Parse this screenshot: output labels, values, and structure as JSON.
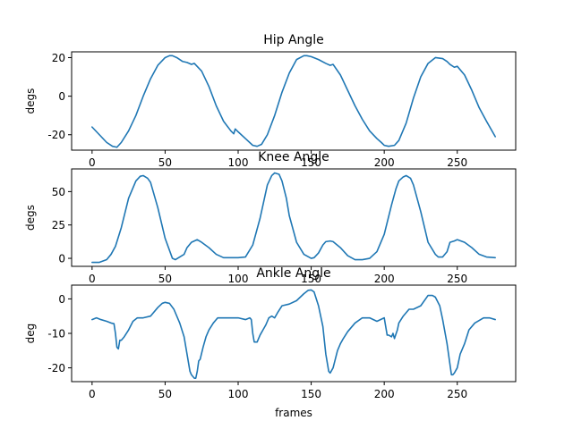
{
  "chart_data": [
    {
      "type": "line",
      "title": "Hip Angle",
      "xlabel": "",
      "ylabel": "degs",
      "xlim": [
        -14,
        290
      ],
      "ylim": [
        -28,
        23
      ],
      "xticks": [
        0,
        50,
        100,
        150,
        200,
        250
      ],
      "yticks": [
        -20,
        0,
        20
      ],
      "color": "#1f77b4",
      "series": [
        {
          "x": [
            0,
            5,
            10,
            14,
            17,
            20,
            25,
            30,
            35,
            40,
            45,
            50,
            53,
            55,
            58,
            62,
            65,
            68,
            70,
            75,
            80,
            85,
            90,
            95,
            97,
            98,
            100,
            105,
            110,
            113,
            116,
            120,
            125,
            130,
            135,
            140,
            145,
            147,
            150,
            155,
            160,
            163,
            165,
            170,
            175,
            180,
            185,
            190,
            195,
            198,
            200,
            203,
            207,
            210,
            215,
            220,
            225,
            230,
            235,
            240,
            243,
            245,
            248,
            250,
            255,
            260,
            265,
            270,
            276
          ],
          "y": [
            -16,
            -20,
            -24,
            -26,
            -26.5,
            -24,
            -18,
            -10,
            0,
            9,
            16,
            20,
            21,
            21,
            20,
            18,
            17.5,
            16.5,
            17,
            13,
            5,
            -5,
            -13,
            -18,
            -19.5,
            -17,
            -18.5,
            -22,
            -25.5,
            -26,
            -25,
            -20,
            -10,
            2,
            12,
            19,
            21,
            21,
            20.5,
            19,
            17,
            16,
            16.5,
            11,
            3,
            -5,
            -12,
            -18,
            -22,
            -24,
            -25.5,
            -26,
            -25.5,
            -23,
            -14,
            -1,
            10,
            17,
            20,
            19.5,
            18,
            16.5,
            15,
            15.5,
            11,
            3,
            -6,
            -13,
            -21
          ]
        }
      ]
    },
    {
      "type": "line",
      "title": "Knee Angle",
      "xlabel": "",
      "ylabel": "degs",
      "xlim": [
        -14,
        290
      ],
      "ylim": [
        -6,
        67
      ],
      "xticks": [
        0,
        50,
        100,
        150,
        200,
        250
      ],
      "yticks": [
        0,
        25,
        50
      ],
      "color": "#1f77b4",
      "series": [
        {
          "x": [
            0,
            5,
            10,
            13,
            16,
            20,
            25,
            30,
            33,
            35,
            38,
            40,
            45,
            50,
            55,
            57,
            60,
            63,
            65,
            68,
            70,
            72,
            75,
            80,
            85,
            90,
            95,
            100,
            105,
            110,
            115,
            118,
            120,
            123,
            125,
            128,
            130,
            133,
            135,
            140,
            145,
            150,
            152,
            155,
            158,
            160,
            163,
            165,
            170,
            175,
            180,
            185,
            190,
            195,
            200,
            205,
            208,
            210,
            213,
            215,
            218,
            220,
            225,
            230,
            235,
            237,
            240,
            243,
            245,
            248,
            250,
            255,
            260,
            265,
            270,
            276
          ],
          "y": [
            -3,
            -3,
            -1,
            3,
            9,
            23,
            45,
            58,
            61.5,
            62,
            60,
            57,
            38,
            15,
            0,
            -1,
            1,
            3,
            8,
            12,
            13,
            14,
            12,
            8,
            3,
            0.5,
            0.5,
            0.5,
            1,
            10,
            30,
            45,
            55,
            62,
            64,
            63,
            58,
            45,
            32,
            12,
            3,
            0,
            0.5,
            4,
            10,
            12.5,
            13,
            12.5,
            8,
            2,
            -1,
            -1,
            0,
            5,
            18,
            40,
            52,
            58,
            61,
            62,
            60,
            55,
            35,
            12,
            3,
            1,
            1,
            5,
            12,
            13,
            14,
            12,
            8,
            3,
            1,
            0.5
          ]
        }
      ]
    },
    {
      "type": "line",
      "title": "Ankle Angle",
      "xlabel": "frames",
      "ylabel": "deg",
      "xlim": [
        -14,
        290
      ],
      "ylim": [
        -24,
        4
      ],
      "xticks": [
        0,
        50,
        100,
        150,
        200,
        250
      ],
      "yticks": [
        -20,
        -10,
        0
      ],
      "color": "#1f77b4",
      "series": [
        {
          "x": [
            0,
            3,
            6,
            10,
            13,
            15,
            16,
            17,
            18,
            19,
            20,
            22,
            25,
            28,
            31,
            35,
            40,
            45,
            48,
            50,
            53,
            56,
            60,
            63,
            65,
            67,
            68,
            69,
            70,
            71,
            72,
            73,
            74,
            76,
            78,
            80,
            83,
            86,
            90,
            95,
            100,
            105,
            108,
            109,
            110,
            111,
            113,
            115,
            117,
            119,
            120,
            121,
            123,
            125,
            127,
            130,
            135,
            140,
            145,
            148,
            150,
            152,
            155,
            158,
            160,
            162,
            163,
            165,
            168,
            170,
            172,
            175,
            180,
            185,
            190,
            195,
            200,
            202,
            203,
            205,
            206,
            207,
            209,
            210,
            213,
            215,
            217,
            220,
            225,
            230,
            233,
            235,
            238,
            240,
            243,
            245,
            246,
            247,
            248,
            250,
            252,
            255,
            258,
            262,
            268,
            272,
            276
          ],
          "y": [
            -6,
            -5.5,
            -6,
            -6.5,
            -7,
            -7.2,
            -10,
            -14,
            -14.5,
            -12,
            -12,
            -11,
            -9,
            -6.5,
            -5.5,
            -5.5,
            -5,
            -2.5,
            -1.3,
            -1,
            -1.3,
            -3,
            -7,
            -11,
            -16,
            -21,
            -22,
            -22.5,
            -23,
            -23,
            -21,
            -18,
            -17.5,
            -14,
            -11,
            -9,
            -7,
            -5.5,
            -5.5,
            -5.5,
            -5.5,
            -6,
            -5.5,
            -6,
            -10,
            -12.5,
            -12.5,
            -10.5,
            -9,
            -7.5,
            -6.5,
            -5.5,
            -5,
            -5.5,
            -4,
            -2,
            -1.5,
            -0.5,
            1.5,
            2.5,
            2.6,
            2,
            -2,
            -8,
            -16,
            -21,
            -21.5,
            -20,
            -15,
            -13,
            -11.5,
            -9.5,
            -7,
            -5.5,
            -5.5,
            -6.5,
            -5.5,
            -10.5,
            -10.5,
            -11,
            -10,
            -11.5,
            -9,
            -7,
            -5,
            -4,
            -3,
            -3,
            -2,
            1,
            1,
            0.5,
            -2,
            -6,
            -13,
            -19,
            -22,
            -22,
            -21.5,
            -20,
            -16,
            -13,
            -9,
            -7,
            -5.5,
            -5.5,
            -6
          ]
        }
      ]
    }
  ]
}
